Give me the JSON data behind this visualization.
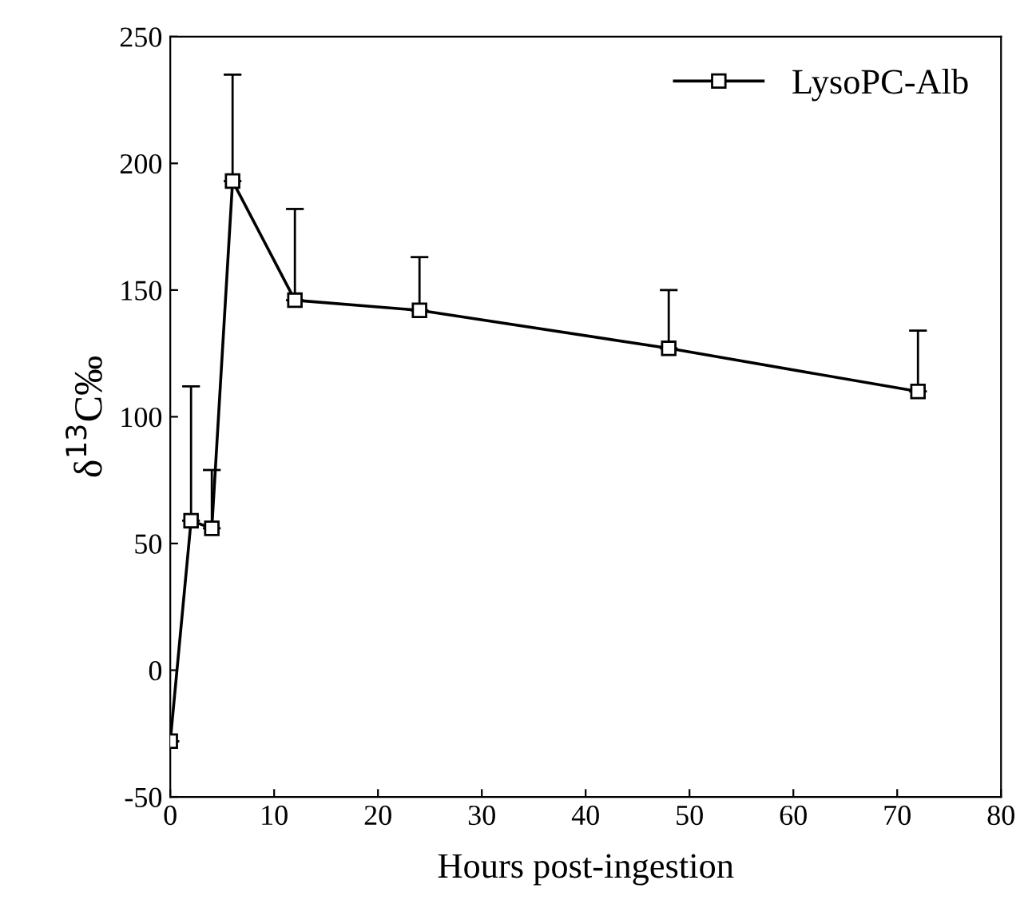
{
  "chart_data": {
    "type": "line",
    "xlabel": "Hours post-ingestion",
    "ylabel": "δ$^{13}$C‰",
    "x": [
      0,
      2,
      4,
      6,
      12,
      24,
      48,
      72
    ],
    "series": [
      {
        "name": "LysoPC-Alb",
        "color": "#000000",
        "values": [
          -28,
          59,
          56,
          193,
          146,
          142,
          127,
          110
        ],
        "errors": [
          null,
          [
            59,
            112
          ],
          [
            56,
            79
          ],
          [
            193,
            235
          ],
          [
            146,
            182
          ],
          [
            142,
            163
          ],
          [
            127,
            150
          ],
          [
            110,
            134
          ]
        ]
      }
    ],
    "xlim": [
      0,
      80
    ],
    "xticks": [
      0,
      10,
      20,
      30,
      40,
      50,
      60,
      70,
      80
    ],
    "ylim": [
      -50,
      250
    ],
    "yticks": [
      -50,
      0,
      50,
      100,
      150,
      200,
      250
    ],
    "marker": "square",
    "line_style": "solid",
    "legend": "top right",
    "grid": false
  }
}
